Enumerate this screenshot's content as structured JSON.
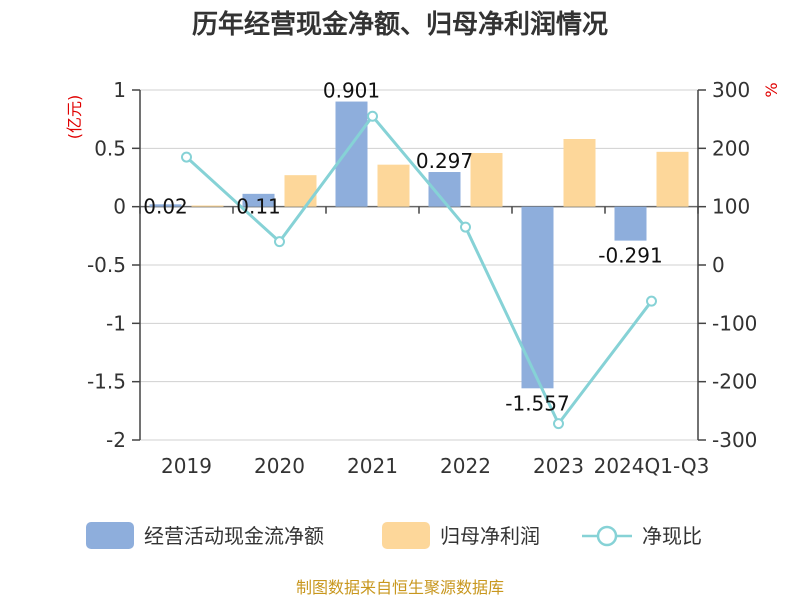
{
  "chart_data": {
    "type": "bar",
    "title": "历年经营现金净额、归母净利润情况",
    "categories": [
      "2019",
      "2020",
      "2021",
      "2022",
      "2023",
      "2024Q1-Q3"
    ],
    "series": [
      {
        "name": "经营活动现金流净额",
        "type": "bar",
        "axis": "left",
        "values": [
          0.02,
          0.11,
          0.901,
          0.297,
          -1.557,
          -0.291
        ],
        "labels": [
          "0.02",
          "0.11",
          "0.901",
          "0.297",
          "-1.557",
          "-0.291"
        ],
        "color": "#8eaedc"
      },
      {
        "name": "归母净利润",
        "type": "bar",
        "axis": "left",
        "values": [
          0.01,
          0.27,
          0.36,
          0.46,
          0.58,
          0.47
        ],
        "color": "#fdd79a"
      },
      {
        "name": "净现比",
        "type": "line",
        "axis": "right",
        "values": [
          185,
          40,
          255,
          65,
          -272,
          -62
        ],
        "color": "#86d2d6"
      }
    ],
    "left_axis": {
      "unit": "(亿元)",
      "ylim": [
        -2,
        1
      ],
      "ticks": [
        1,
        0.5,
        0,
        -0.5,
        -1,
        -1.5,
        -2
      ],
      "tick_labels": [
        "1",
        "0.5",
        "0",
        "-0.5",
        "-1",
        "-1.5",
        "-2"
      ]
    },
    "right_axis": {
      "unit": "%",
      "ylim": [
        -300,
        300
      ],
      "ticks": [
        300,
        200,
        100,
        0,
        -100,
        -200,
        -300
      ],
      "tick_labels": [
        "300",
        "200",
        "100",
        "0",
        "-100",
        "-200",
        "-300"
      ]
    },
    "grid": true,
    "legend": "bottom",
    "source": "制图数据来自恒生聚源数据库"
  }
}
